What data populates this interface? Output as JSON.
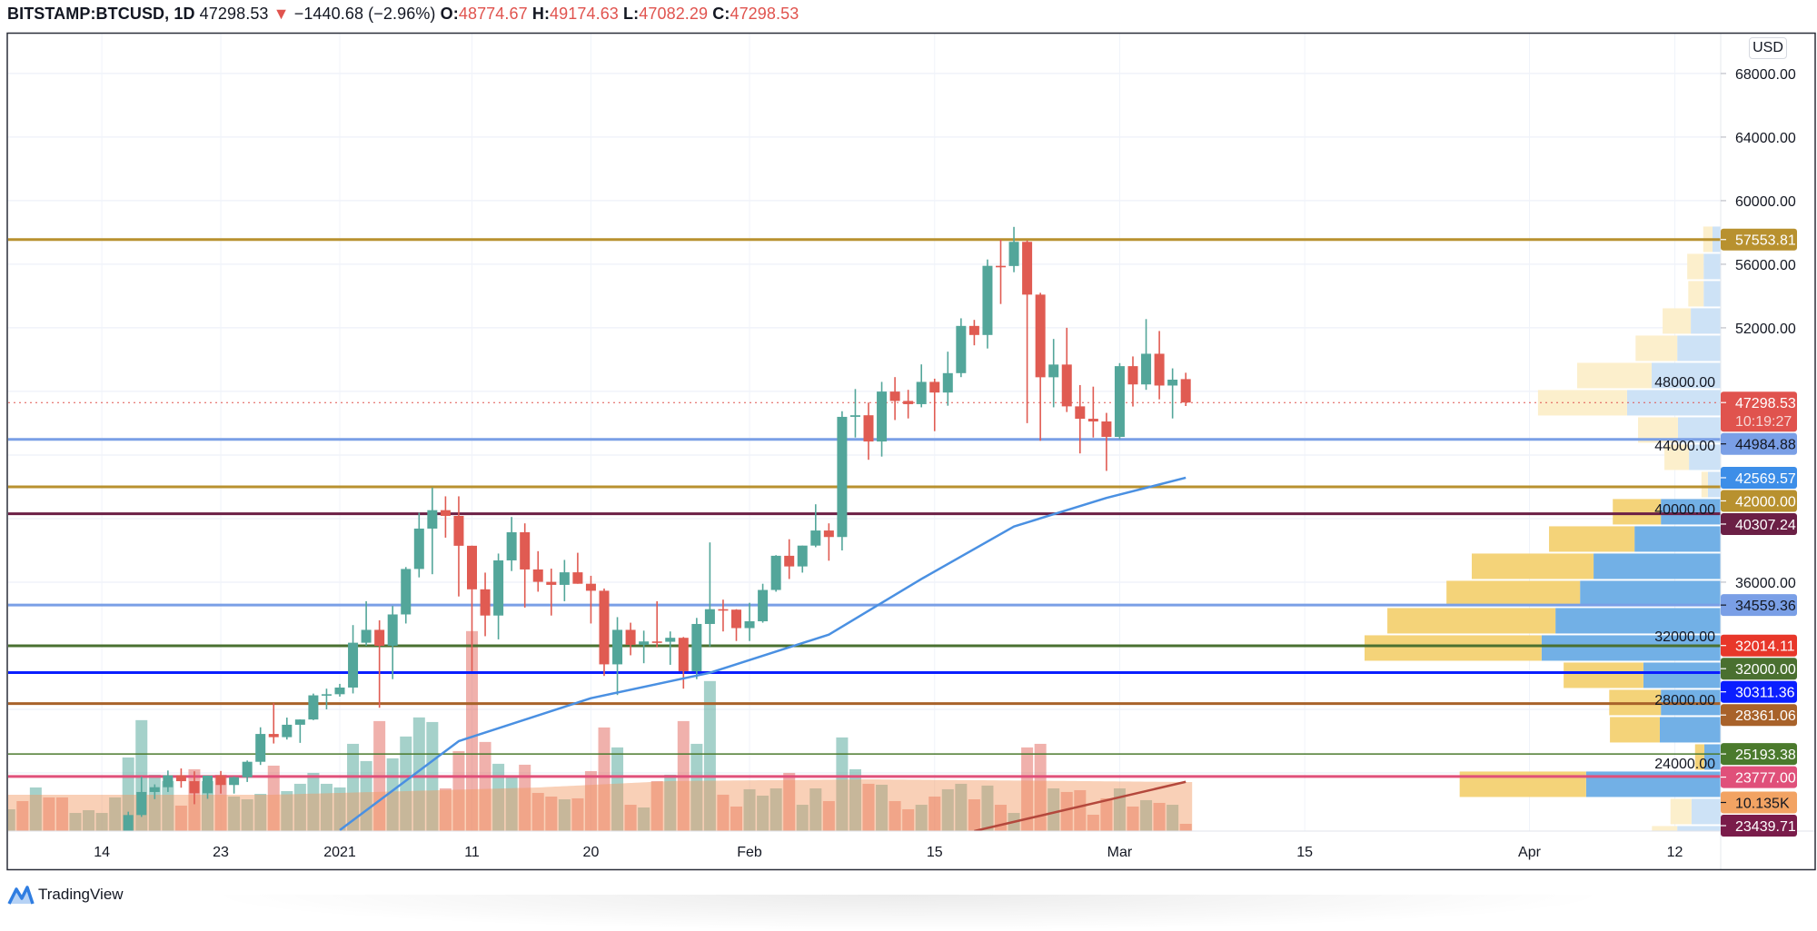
{
  "header": {
    "symbol": "BITSTAMP:BTCUSD, 1D",
    "last": "47298.53",
    "arrow": "▼",
    "change": "−1440.68 (−2.96%)",
    "o_label": "O:",
    "o": "48774.67",
    "h_label": "H:",
    "h": "49174.63",
    "l_label": "L:",
    "l": "47082.29",
    "c_label": "C:",
    "c": "47298.53"
  },
  "currency": "USD",
  "brand": {
    "name": "TradingView",
    "icon": "tradingview-logo-icon"
  },
  "colors": {
    "up": "#53a69a",
    "down": "#e05b52",
    "vol_up": "rgba(83,166,154,0.52)",
    "vol_down": "rgba(224,91,82,0.48)",
    "volume_ma_area": "rgba(242,150,95,0.45)",
    "sma50": "#4a90e2",
    "sma200": "#b4483c",
    "vp_up_light": "#cde2f6",
    "vp_down_light": "#fcefcc",
    "vp_up": "#72b0e6",
    "vp_down": "#f4d379",
    "grid": "#f0f3fa",
    "text": "#131722"
  },
  "chart_data": {
    "type": "candlestick",
    "ylim": [
      20340,
      70510
    ],
    "xlim": [
      "2020-12-07",
      "2021-04-14"
    ],
    "grid": true,
    "price_ticks": [
      "68000.00",
      "64000.00",
      "60000.00",
      "56000.00",
      "52000.00",
      "48000.00",
      "44000.00",
      "40000.00",
      "36000.00",
      "32000.00",
      "28000.00",
      "24000.00"
    ],
    "time_ticks": [
      {
        "label": "14",
        "date": "2020-12-14"
      },
      {
        "label": "23",
        "date": "2020-12-23"
      },
      {
        "label": "2021",
        "date": "2021-01-01"
      },
      {
        "label": "11",
        "date": "2021-01-11"
      },
      {
        "label": "20",
        "date": "2021-01-20"
      },
      {
        "label": "Feb",
        "date": "2021-02-01"
      },
      {
        "label": "15",
        "date": "2021-02-15"
      },
      {
        "label": "Mar",
        "date": "2021-03-01"
      },
      {
        "label": "15",
        "date": "2021-03-15"
      },
      {
        "label": "Apr",
        "date": "2021-04-01"
      },
      {
        "label": "12",
        "date": "2021-04-12"
      }
    ],
    "candles_columns": [
      "date",
      "open",
      "high",
      "low",
      "close",
      "volume_k"
    ],
    "candles": [
      [
        "2020-12-07",
        19150,
        19420,
        18900,
        19180,
        30.4
      ],
      [
        "2020-12-08",
        19180,
        19290,
        18200,
        18320,
        41.8
      ],
      [
        "2020-12-09",
        18320,
        18640,
        17650,
        18550,
        60.8
      ],
      [
        "2020-12-10",
        18550,
        18560,
        17920,
        18250,
        46.9
      ],
      [
        "2020-12-11",
        18250,
        18280,
        17570,
        18030,
        46.9
      ],
      [
        "2020-12-12",
        18030,
        18950,
        18000,
        18800,
        25.3
      ],
      [
        "2020-12-13",
        18800,
        19400,
        18730,
        19170,
        29.1
      ],
      [
        "2020-12-14",
        19170,
        19340,
        19000,
        19270,
        25.3
      ],
      [
        "2020-12-15",
        19270,
        19560,
        19050,
        19440,
        46.9
      ],
      [
        "2020-12-16",
        19440,
        21560,
        19290,
        21350,
        102.6
      ],
      [
        "2020-12-17",
        21350,
        23770,
        21230,
        22800,
        154.6
      ],
      [
        "2020-12-18",
        22800,
        23280,
        22350,
        23100,
        78.6
      ],
      [
        "2020-12-19",
        23100,
        24150,
        22800,
        23850,
        69.7
      ],
      [
        "2020-12-20",
        23850,
        24280,
        23070,
        23480,
        35.5
      ],
      [
        "2020-12-21",
        23480,
        24100,
        22030,
        22720,
        86.2
      ],
      [
        "2020-12-22",
        22720,
        23830,
        22370,
        23830,
        69.7
      ],
      [
        "2020-12-23",
        23830,
        24120,
        22700,
        23240,
        78.6
      ],
      [
        "2020-12-24",
        23240,
        23780,
        22700,
        23730,
        48.1
      ],
      [
        "2020-12-25",
        23730,
        24780,
        23430,
        24700,
        44.3
      ],
      [
        "2020-12-26",
        24700,
        26870,
        24500,
        26450,
        51.9
      ],
      [
        "2020-12-27",
        26450,
        28390,
        25850,
        26250,
        91.2
      ],
      [
        "2020-12-28",
        26250,
        27480,
        26100,
        27030,
        55.7
      ],
      [
        "2020-12-29",
        27030,
        27370,
        25890,
        27360,
        65.9
      ],
      [
        "2020-12-30",
        27360,
        28990,
        27320,
        28880,
        81.1
      ],
      [
        "2020-12-31",
        28880,
        29300,
        28000,
        28950,
        65.9
      ],
      [
        "2021-01-01",
        28950,
        29600,
        28800,
        29370,
        60.8
      ],
      [
        "2021-01-02",
        29370,
        33300,
        29000,
        32190,
        121.6
      ],
      [
        "2021-01-03",
        32190,
        34800,
        32000,
        33000,
        97.6
      ],
      [
        "2021-01-04",
        33000,
        33600,
        28100,
        32000,
        153.3
      ],
      [
        "2021-01-05",
        32000,
        34500,
        29900,
        33970,
        101.4
      ],
      [
        "2021-01-06",
        33970,
        36950,
        33400,
        36830,
        131.8
      ],
      [
        "2021-01-07",
        36830,
        40370,
        36300,
        39370,
        158.4
      ],
      [
        "2021-01-08",
        39370,
        41950,
        36500,
        40530,
        152.0
      ],
      [
        "2021-01-09",
        40530,
        41400,
        38800,
        40170,
        59.5
      ],
      [
        "2021-01-10",
        40170,
        41400,
        35100,
        38290,
        111.5
      ],
      [
        "2021-01-11",
        38290,
        38300,
        30400,
        35550,
        278.7
      ],
      [
        "2021-01-12",
        35550,
        36600,
        32600,
        33900,
        124.2
      ],
      [
        "2021-01-13",
        33900,
        37800,
        32400,
        37370,
        93.8
      ],
      [
        "2021-01-14",
        37370,
        40100,
        36700,
        39140,
        74.8
      ],
      [
        "2021-01-15",
        39140,
        39700,
        34400,
        36800,
        92.5
      ],
      [
        "2021-01-16",
        36800,
        37950,
        35400,
        36020,
        53.2
      ],
      [
        "2021-01-17",
        36020,
        36850,
        33900,
        35830,
        48.1
      ],
      [
        "2021-01-18",
        35830,
        37400,
        34800,
        36620,
        44.3
      ],
      [
        "2021-01-19",
        36620,
        37850,
        35900,
        35900,
        45.6
      ],
      [
        "2021-01-20",
        35900,
        36400,
        33400,
        35460,
        83.6
      ],
      [
        "2021-01-21",
        35460,
        35600,
        30100,
        30830,
        144.4
      ],
      [
        "2021-01-22",
        30830,
        33800,
        28900,
        33000,
        116.6
      ],
      [
        "2021-01-23",
        33000,
        33450,
        31400,
        32060,
        36.7
      ],
      [
        "2021-01-24",
        32060,
        32950,
        30900,
        32270,
        32.9
      ],
      [
        "2021-01-25",
        32270,
        34800,
        31900,
        32250,
        69.7
      ],
      [
        "2021-01-26",
        32250,
        32900,
        30800,
        32500,
        78.6
      ],
      [
        "2021-01-27",
        32500,
        32550,
        29300,
        30400,
        153.3
      ],
      [
        "2021-01-28",
        30400,
        33750,
        29900,
        33370,
        121.6
      ],
      [
        "2021-01-29",
        33370,
        38500,
        31950,
        34300,
        209.1
      ],
      [
        "2021-01-30",
        34300,
        34900,
        32900,
        34270,
        50.7
      ],
      [
        "2021-01-31",
        34270,
        34300,
        32300,
        33110,
        34.2
      ],
      [
        "2021-02-01",
        33110,
        34700,
        32300,
        33540,
        58.3
      ],
      [
        "2021-02-02",
        33540,
        35900,
        33450,
        35510,
        49.4
      ],
      [
        "2021-02-03",
        35510,
        37700,
        35400,
        37660,
        59.5
      ],
      [
        "2021-02-04",
        37660,
        38700,
        36200,
        36990,
        81.1
      ],
      [
        "2021-02-05",
        36990,
        38300,
        36600,
        38300,
        36.7
      ],
      [
        "2021-02-06",
        38300,
        40900,
        38200,
        39250,
        59.5
      ],
      [
        "2021-02-07",
        39250,
        39700,
        37350,
        38840,
        41.8
      ],
      [
        "2021-02-08",
        38840,
        46750,
        38000,
        46400,
        130.5
      ],
      [
        "2021-02-09",
        46400,
        48150,
        45100,
        46500,
        86.2
      ],
      [
        "2021-02-10",
        46500,
        47300,
        43700,
        44850,
        65.9
      ],
      [
        "2021-02-11",
        44850,
        48600,
        43900,
        47990,
        64.6
      ],
      [
        "2021-02-12",
        47990,
        48900,
        46200,
        47400,
        41.8
      ],
      [
        "2021-02-13",
        47400,
        48100,
        46300,
        47200,
        30.4
      ],
      [
        "2021-02-14",
        47200,
        49700,
        47000,
        48600,
        36.7
      ],
      [
        "2021-02-15",
        48600,
        48800,
        45500,
        47930,
        48.1
      ],
      [
        "2021-02-16",
        47930,
        50500,
        47100,
        49150,
        58.3
      ],
      [
        "2021-02-17",
        49150,
        52600,
        48900,
        52120,
        65.9
      ],
      [
        "2021-02-18",
        52120,
        52500,
        50900,
        51550,
        44.3
      ],
      [
        "2021-02-19",
        51550,
        56300,
        50700,
        55900,
        63.4
      ],
      [
        "2021-02-20",
        55900,
        57550,
        53500,
        55890,
        36.7
      ],
      [
        "2021-02-21",
        55890,
        58350,
        55500,
        57410,
        25.3
      ],
      [
        "2021-02-22",
        57410,
        57500,
        46000,
        54090,
        116.6
      ],
      [
        "2021-02-23",
        54090,
        54200,
        44900,
        48890,
        121.6
      ],
      [
        "2021-02-24",
        48890,
        51300,
        47000,
        49690,
        59.5
      ],
      [
        "2021-02-25",
        49690,
        52000,
        46700,
        47060,
        54.5
      ],
      [
        "2021-02-26",
        47060,
        48400,
        44100,
        46280,
        57.0
      ],
      [
        "2021-02-27",
        46280,
        48300,
        45100,
        46110,
        22.8
      ],
      [
        "2021-02-28",
        46110,
        46650,
        43000,
        45140,
        45.6
      ],
      [
        "2021-03-01",
        45140,
        49780,
        45000,
        49590,
        59.5
      ],
      [
        "2021-03-02",
        49590,
        50200,
        47050,
        48440,
        34.2
      ],
      [
        "2021-03-03",
        48440,
        52550,
        48100,
        50370,
        43.1
      ],
      [
        "2021-03-04",
        50370,
        51800,
        47500,
        48370,
        39.3
      ],
      [
        "2021-03-05",
        48370,
        49450,
        46300,
        48739.21,
        36.7
      ],
      [
        "2021-03-06",
        48774.67,
        49174.63,
        47082.29,
        47298.53,
        10.135
      ]
    ],
    "sma50": [
      [
        "2021-01-01",
        20400
      ],
      [
        "2021-01-10",
        26000
      ],
      [
        "2021-01-20",
        28700
      ],
      [
        "2021-01-29",
        30300
      ],
      [
        "2021-02-07",
        32700
      ],
      [
        "2021-02-14",
        36200
      ],
      [
        "2021-02-21",
        39500
      ],
      [
        "2021-02-28",
        41300
      ],
      [
        "2021-03-06",
        42569.57
      ]
    ],
    "sma200": [
      [
        "2021-02-18",
        20340
      ],
      [
        "2021-03-06",
        23439.71
      ]
    ],
    "volume_ma_k": [
      [
        "2020-12-07",
        50.7
      ],
      [
        "2020-12-27",
        50.7
      ],
      [
        "2021-01-06",
        55.7
      ],
      [
        "2021-01-16",
        60.8
      ],
      [
        "2021-01-26",
        69.7
      ],
      [
        "2021-02-10",
        72.2
      ],
      [
        "2021-03-06",
        68.4
      ]
    ],
    "levels": [
      {
        "price": 57553.81,
        "label": "57553.81",
        "color": "#b8912f",
        "text_color": "#ffffff",
        "line": "solid"
      },
      {
        "price": 47298.53,
        "label": "47298.53",
        "sub": "10:19:27",
        "color": "#e0534e",
        "text_color": "#ffffff",
        "line": "dotted"
      },
      {
        "price": 44984.88,
        "label": "44984.88",
        "color": "#7a9fe6",
        "text_color": "#131722",
        "line": "solid"
      },
      {
        "price": 42569.57,
        "label": "42569.57",
        "color": "#3d8ee8",
        "text_color": "#ffffff",
        "line": "none"
      },
      {
        "price": 42000.0,
        "label": "42000.00",
        "color": "#b8912f",
        "text_color": "#ffffff",
        "line": "solid"
      },
      {
        "price": 40307.24,
        "label": "40307.24",
        "color": "#6b1f45",
        "text_color": "#ffffff",
        "line": "solid"
      },
      {
        "price": 34559.36,
        "label": "34559.36",
        "color": "#7a9fe6",
        "text_color": "#131722",
        "line": "solid"
      },
      {
        "price": 32014.11,
        "label": "32014.11",
        "color": "#e8372a",
        "text_color": "#ffffff",
        "line": "thin"
      },
      {
        "price": 32000.0,
        "label": "32000.00",
        "color": "#4a7030",
        "text_color": "#ffffff",
        "line": "solid"
      },
      {
        "price": 30311.36,
        "label": "30311.36",
        "color": "#0a1eff",
        "text_color": "#ffffff",
        "line": "solid"
      },
      {
        "price": 28361.06,
        "label": "28361.06",
        "color": "#a8622a",
        "text_color": "#ffffff",
        "line": "solid"
      },
      {
        "price": 25193.38,
        "label": "25193.38",
        "color": "#4b7a2d",
        "text_color": "#ffffff",
        "line": "thin"
      },
      {
        "price": 23777.0,
        "label": "23777.00",
        "color": "#e0507a",
        "text_color": "#ffffff",
        "line": "solid"
      },
      {
        "volume_k": 10.135,
        "label": "10.135K",
        "color": "#f2a363",
        "text_color": "#131722",
        "line": "none"
      },
      {
        "price": 23439.71,
        "label": "23439.71",
        "color": "#7a1c4a",
        "text_color": "#ffffff",
        "line": "none"
      }
    ],
    "volume_profile_columns": [
      "price",
      "up_share",
      "down_share",
      "in_value_area"
    ],
    "volume_profile": [
      [
        57571,
        0.023,
        0.026,
        false
      ],
      [
        55857,
        0.048,
        0.046,
        false
      ],
      [
        54143,
        0.048,
        0.043,
        false
      ],
      [
        52429,
        0.084,
        0.079,
        false
      ],
      [
        50714,
        0.122,
        0.117,
        false
      ],
      [
        49000,
        0.194,
        0.209,
        false
      ],
      [
        47286,
        0.263,
        0.25,
        false
      ],
      [
        45571,
        0.12,
        0.112,
        false
      ],
      [
        43857,
        0.089,
        0.069,
        false
      ],
      [
        42143,
        0.036,
        0.018,
        false
      ],
      [
        40429,
        0.168,
        0.135,
        true
      ],
      [
        38714,
        0.242,
        0.24,
        true
      ],
      [
        37000,
        0.357,
        0.342,
        true
      ],
      [
        35286,
        0.395,
        0.375,
        true
      ],
      [
        33571,
        0.464,
        0.472,
        true
      ],
      [
        31857,
        0.503,
        0.497,
        true
      ],
      [
        30143,
        0.217,
        0.224,
        true
      ],
      [
        28429,
        0.168,
        0.145,
        true
      ],
      [
        26714,
        0.171,
        0.14,
        true
      ],
      [
        25000,
        0.046,
        0.026,
        true
      ],
      [
        23286,
        0.378,
        0.355,
        true
      ],
      [
        21571,
        0.082,
        0.059,
        false
      ],
      [
        19857,
        0.122,
        0.071,
        false
      ]
    ]
  }
}
